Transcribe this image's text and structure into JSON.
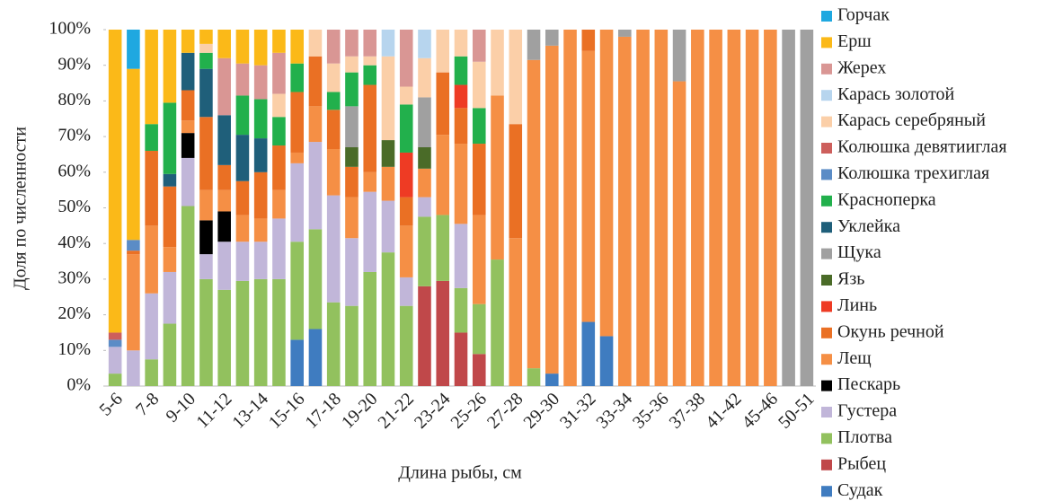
{
  "chart_data": {
    "type": "stacked_bar_percent",
    "x_label": "Длина рыбы, см",
    "y_label": "Доля по численности",
    "categories": [
      "5-6",
      null,
      "7-8",
      null,
      "9-10",
      null,
      "11-12",
      null,
      "13-14",
      null,
      "15-16",
      null,
      "17-18",
      null,
      "19-20",
      null,
      "21-22",
      null,
      "23-24",
      null,
      "25-26",
      null,
      "27-28",
      null,
      "29-30",
      null,
      "31-32",
      null,
      "33-34",
      null,
      "35-36",
      null,
      "37-38",
      null,
      "41-42",
      null,
      "45-46",
      null,
      "50-51"
    ],
    "ylim": [
      0,
      100
    ],
    "yticks": [
      {
        "value": 0,
        "label": "0%"
      },
      {
        "value": 10,
        "label": "10%"
      },
      {
        "value": 20,
        "label": "20%"
      },
      {
        "value": 30,
        "label": "30%"
      },
      {
        "value": 40,
        "label": "40%"
      },
      {
        "value": 50,
        "label": "50%"
      },
      {
        "value": 60,
        "label": "60%"
      },
      {
        "value": 70,
        "label": "70%"
      },
      {
        "value": 80,
        "label": "80%"
      },
      {
        "value": 90,
        "label": "90%"
      },
      {
        "value": 100,
        "label": "100%"
      }
    ],
    "series": [
      {
        "name": "Горчак",
        "color": "#1fa8e0",
        "values": [
          0,
          11,
          0,
          0,
          0,
          0,
          0,
          0,
          0,
          0,
          0,
          0,
          0,
          0,
          0,
          0,
          0,
          0,
          0,
          0,
          0,
          0,
          0,
          0,
          0,
          0,
          0,
          0,
          0,
          0,
          0,
          0,
          0,
          0,
          0,
          0,
          0,
          0,
          0
        ]
      },
      {
        "name": "Ерш",
        "color": "#fbb918",
        "values": [
          85,
          48,
          26.5,
          20.5,
          6.5,
          4,
          8,
          9.5,
          10,
          6.5,
          9.5,
          0,
          0,
          0,
          0,
          0,
          0,
          0,
          0,
          0,
          0,
          0,
          0,
          0,
          0,
          0,
          0,
          0,
          0,
          0,
          0,
          0,
          0,
          0,
          0,
          0,
          0,
          0,
          0
        ]
      },
      {
        "name": "Жерех",
        "color": "#d99694",
        "values": [
          0,
          0,
          0,
          0,
          0,
          0,
          16,
          9,
          9.5,
          11.5,
          0,
          0,
          9.5,
          7.5,
          7.5,
          0,
          16,
          0,
          0,
          0,
          9,
          0,
          0,
          0,
          0,
          0,
          0,
          0,
          0,
          0,
          0,
          0,
          0,
          0,
          0,
          0,
          0,
          0,
          0
        ]
      },
      {
        "name": "Карась золотой",
        "color": "#b7d5ee",
        "values": [
          0,
          0,
          0,
          0,
          0,
          0,
          0,
          0,
          0,
          0,
          0,
          0,
          0,
          0,
          0,
          7.5,
          0,
          8,
          0,
          0,
          0,
          0,
          0,
          0,
          0,
          0,
          0,
          0,
          0,
          0,
          0,
          0,
          0,
          0,
          0,
          0,
          0,
          0,
          0
        ]
      },
      {
        "name": "Карась серебряный",
        "color": "#fbcfa8",
        "values": [
          0,
          0,
          0,
          0,
          0,
          2.5,
          0,
          0,
          0,
          6.5,
          0,
          7.5,
          8,
          4.5,
          2.5,
          23.5,
          5,
          11,
          12,
          7.5,
          13,
          18.5,
          26.5,
          0,
          0,
          0,
          0,
          0,
          0,
          0,
          0,
          0,
          0,
          0,
          0,
          0,
          0,
          0,
          0
        ]
      },
      {
        "name": "Колюшка девятииглая",
        "color": "#cd5f5c",
        "values": [
          2,
          0,
          0,
          0,
          0,
          0,
          0,
          0,
          0,
          0,
          0,
          0,
          0,
          0,
          0,
          0,
          0,
          0,
          0,
          0,
          0,
          0,
          0,
          0,
          0,
          0,
          0,
          0,
          0,
          0,
          0,
          0,
          0,
          0,
          0,
          0,
          0,
          0,
          0
        ]
      },
      {
        "name": "Колюшка трехиглая",
        "color": "#5b8cc6",
        "values": [
          2,
          3,
          0,
          0,
          0,
          0,
          0,
          0,
          0,
          0,
          0,
          0,
          0,
          0,
          0,
          0,
          0,
          0,
          0,
          0,
          0,
          0,
          0,
          0,
          0,
          0,
          0,
          0,
          0,
          0,
          0,
          0,
          0,
          0,
          0,
          0,
          0,
          0,
          0
        ]
      },
      {
        "name": "Красноперка",
        "color": "#22b04c",
        "values": [
          0,
          0,
          7.5,
          20,
          0,
          4.5,
          0,
          11,
          11,
          8,
          8,
          0,
          5,
          9.5,
          5.5,
          0,
          13.5,
          0,
          0,
          8,
          10,
          0,
          0,
          0,
          0,
          0,
          0,
          0,
          0,
          0,
          0,
          0,
          0,
          0,
          0,
          0,
          0,
          0,
          0
        ]
      },
      {
        "name": "Уклейка",
        "color": "#1f5f7a",
        "values": [
          0,
          0,
          0,
          3.5,
          10.5,
          13.5,
          14,
          13,
          9.5,
          0,
          0,
          0,
          0,
          0,
          0,
          0,
          0,
          0,
          0,
          0,
          0,
          0,
          0,
          0,
          0,
          0,
          0,
          0,
          0,
          0,
          0,
          0,
          0,
          0,
          0,
          0,
          0,
          0,
          0
        ]
      },
      {
        "name": "Щука",
        "color": "#a0a0a0",
        "values": [
          0,
          0,
          0,
          0,
          0,
          0,
          0,
          0,
          0,
          0,
          0,
          0,
          0,
          11.5,
          0,
          0,
          0,
          14,
          0,
          0,
          0,
          0,
          0,
          8.5,
          4.5,
          0,
          0,
          0,
          2,
          0,
          0,
          14.5,
          0,
          0,
          0,
          0,
          0,
          100,
          100
        ]
      },
      {
        "name": "Язь",
        "color": "#4a6b28",
        "values": [
          0,
          0,
          0,
          0,
          0,
          0,
          0,
          0,
          0,
          0,
          0,
          0,
          0,
          5.5,
          0,
          7.5,
          0,
          6,
          0,
          0,
          0,
          0,
          0,
          0,
          0,
          0,
          0,
          0,
          0,
          0,
          0,
          0,
          0,
          0,
          0,
          0,
          0,
          0,
          0
        ]
      },
      {
        "name": "Линь",
        "color": "#ee3b24",
        "values": [
          0,
          0,
          0,
          0,
          0,
          0,
          0,
          0,
          0,
          0,
          0,
          0,
          0,
          0,
          0,
          0,
          12.5,
          0,
          0,
          6.5,
          0,
          0,
          0,
          0,
          0,
          0,
          0,
          0,
          0,
          0,
          0,
          0,
          0,
          0,
          0,
          0,
          0,
          0,
          0
        ]
      },
      {
        "name": "Окунь речной",
        "color": "#ea7024",
        "values": [
          0,
          1,
          21,
          17,
          8.5,
          20.5,
          7,
          9.5,
          13,
          12.5,
          17,
          14,
          11,
          8.5,
          24.5,
          0,
          8,
          0,
          17.5,
          10,
          20,
          0,
          32,
          0,
          0,
          0,
          6,
          0,
          0,
          0,
          0,
          0,
          0,
          0,
          0,
          0,
          0,
          0,
          0
        ]
      },
      {
        "name": "Лещ",
        "color": "#f58f45",
        "values": [
          0,
          27,
          19,
          7,
          3.5,
          8.5,
          6,
          7.5,
          6.5,
          8,
          3,
          10,
          13,
          11.5,
          5.5,
          9.5,
          14.5,
          8,
          22.5,
          22.5,
          25,
          46,
          41.5,
          86.5,
          92,
          100,
          76,
          86,
          98,
          100,
          100,
          85.5,
          100,
          100,
          100,
          100,
          100,
          0,
          0
        ]
      },
      {
        "name": "Пескарь",
        "color": "#000000",
        "values": [
          0,
          0,
          0,
          0,
          7,
          9.5,
          8.5,
          0,
          0,
          0,
          0,
          0,
          0,
          0,
          0,
          0,
          0,
          0,
          0,
          0,
          0,
          0,
          0,
          0,
          0,
          0,
          0,
          0,
          0,
          0,
          0,
          0,
          0,
          0,
          0,
          0,
          0,
          0,
          0
        ]
      },
      {
        "name": "Густера",
        "color": "#c1b6d9",
        "values": [
          7.5,
          10,
          18.5,
          14.5,
          13.5,
          7,
          13.5,
          11,
          10.5,
          17,
          22,
          24.5,
          30,
          19,
          22.5,
          14.5,
          8,
          5.5,
          0,
          18,
          0,
          0,
          0,
          0,
          0,
          0,
          0,
          0,
          0,
          0,
          0,
          0,
          0,
          0,
          0,
          0,
          0,
          0,
          0
        ]
      },
      {
        "name": "Плотва",
        "color": "#92c15e",
        "values": [
          3.5,
          0,
          7.5,
          17.5,
          50.5,
          30,
          27,
          29.5,
          30,
          30,
          27.5,
          28,
          23.5,
          22.5,
          32,
          37.5,
          22.5,
          19.5,
          18.5,
          12.5,
          14,
          35.5,
          0,
          5,
          0,
          0,
          0,
          0,
          0,
          0,
          0,
          0,
          0,
          0,
          0,
          0,
          0,
          0,
          0
        ]
      },
      {
        "name": "Рыбец",
        "color": "#c0484a",
        "values": [
          0,
          0,
          0,
          0,
          0,
          0,
          0,
          0,
          0,
          0,
          0,
          0,
          0,
          0,
          0,
          0,
          0,
          28,
          29.5,
          15,
          9,
          0,
          0,
          0,
          0,
          0,
          0,
          0,
          0,
          0,
          0,
          0,
          0,
          0,
          0,
          0,
          0,
          0,
          0
        ]
      },
      {
        "name": "Судак",
        "color": "#3f7cc0",
        "values": [
          0,
          0,
          0,
          0,
          0,
          0,
          0,
          0,
          0,
          0,
          13,
          16,
          0,
          0,
          0,
          0,
          0,
          0,
          0,
          0,
          0,
          0,
          0,
          0,
          3.5,
          0,
          18,
          14,
          0,
          0,
          0,
          0,
          0,
          0,
          0,
          0,
          0,
          0,
          0
        ]
      }
    ]
  }
}
